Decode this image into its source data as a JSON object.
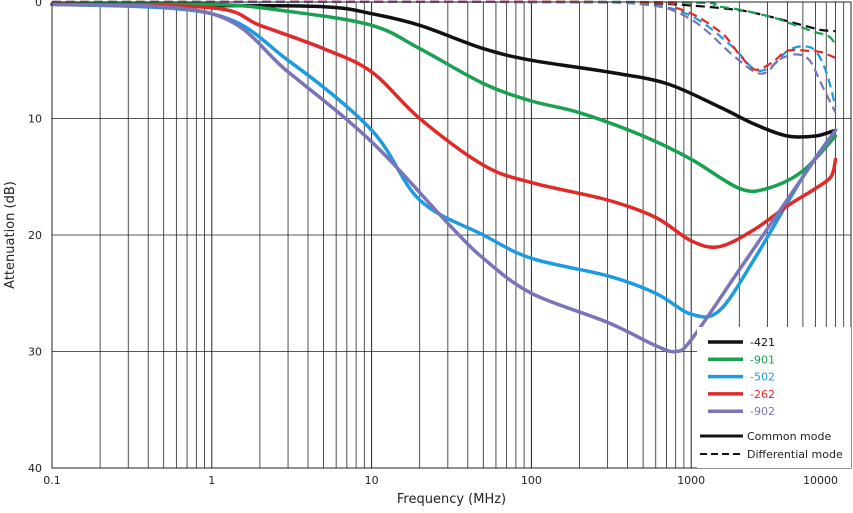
{
  "chart_data": {
    "type": "line",
    "title": "",
    "xlabel": "Frequency (MHz)",
    "ylabel": "Attenuation (dB)",
    "x_scale": "log",
    "xlim": [
      0.1,
      10000
    ],
    "ylim": [
      0,
      40
    ],
    "y_inverted": true,
    "grid": true,
    "legend_position": "bottom-right",
    "x_tick_labels": [
      {
        "value": 0.1,
        "label": "0.1"
      },
      {
        "value": 1,
        "label": "1"
      },
      {
        "value": 10,
        "label": "10"
      },
      {
        "value": 100,
        "label": "100"
      },
      {
        "value": 1000,
        "label": "1000"
      },
      {
        "value": 10000,
        "label": "10000"
      }
    ],
    "y_tick_labels": [
      {
        "value": 0,
        "label": "0"
      },
      {
        "value": 10,
        "label": "10"
      },
      {
        "value": 20,
        "label": "20"
      },
      {
        "value": 30,
        "label": "30"
      },
      {
        "value": 40,
        "label": "40"
      }
    ],
    "series": [
      {
        "name": "-421",
        "mode": "common",
        "color": "#111111",
        "points": [
          [
            0.1,
            0.2
          ],
          [
            1,
            0.3
          ],
          [
            5,
            0.4
          ],
          [
            10,
            1
          ],
          [
            20,
            2
          ],
          [
            50,
            4
          ],
          [
            100,
            5
          ],
          [
            300,
            6
          ],
          [
            700,
            7
          ],
          [
            1500,
            9
          ],
          [
            2500,
            10.5
          ],
          [
            4000,
            11.5
          ],
          [
            6000,
            11.5
          ],
          [
            8000,
            11
          ]
        ]
      },
      {
        "name": "-421",
        "mode": "differential",
        "color": "#111111",
        "points": [
          [
            0.1,
            0
          ],
          [
            100,
            0
          ],
          [
            500,
            0.1
          ],
          [
            1000,
            0.3
          ],
          [
            2000,
            0.7
          ],
          [
            3000,
            1.2
          ],
          [
            5000,
            2
          ],
          [
            6500,
            2.4
          ],
          [
            8000,
            2.5
          ]
        ]
      },
      {
        "name": "-901",
        "mode": "common",
        "color": "#1aa050",
        "points": [
          [
            0.1,
            0.2
          ],
          [
            1,
            0.2
          ],
          [
            3,
            0.8
          ],
          [
            10,
            2
          ],
          [
            20,
            4
          ],
          [
            50,
            7
          ],
          [
            100,
            8.5
          ],
          [
            200,
            9.5
          ],
          [
            500,
            11.5
          ],
          [
            1000,
            13.5
          ],
          [
            2000,
            16
          ],
          [
            3000,
            16
          ],
          [
            5000,
            14.5
          ],
          [
            8000,
            11.5
          ]
        ]
      },
      {
        "name": "-901",
        "mode": "differential",
        "color": "#1aa050",
        "points": [
          [
            0.1,
            0
          ],
          [
            500,
            0
          ],
          [
            1500,
            0.4
          ],
          [
            3000,
            1.2
          ],
          [
            4500,
            2
          ],
          [
            6000,
            2.6
          ],
          [
            7200,
            2.9
          ],
          [
            8000,
            3.6
          ]
        ]
      },
      {
        "name": "-502",
        "mode": "common",
        "color": "#1c9be0",
        "points": [
          [
            0.1,
            0.2
          ],
          [
            1,
            1
          ],
          [
            3,
            5
          ],
          [
            10,
            11
          ],
          [
            20,
            17
          ],
          [
            50,
            20
          ],
          [
            100,
            22
          ],
          [
            300,
            23.5
          ],
          [
            600,
            25
          ],
          [
            1000,
            26.8
          ],
          [
            1500,
            26.5
          ],
          [
            2500,
            22
          ],
          [
            5000,
            15
          ],
          [
            8000,
            11
          ]
        ]
      },
      {
        "name": "-502",
        "mode": "differential",
        "color": "#1c9be0",
        "points": [
          [
            0.1,
            0
          ],
          [
            100,
            0
          ],
          [
            500,
            0.2
          ],
          [
            1000,
            1.2
          ],
          [
            1800,
            3.8
          ],
          [
            2500,
            5.8
          ],
          [
            3200,
            5.5
          ],
          [
            4000,
            4.2
          ],
          [
            5000,
            3.8
          ],
          [
            6000,
            4.2
          ],
          [
            7000,
            6
          ],
          [
            8000,
            9
          ]
        ]
      },
      {
        "name": "-262",
        "mode": "common",
        "color": "#e02a2a",
        "points": [
          [
            0.1,
            0.2
          ],
          [
            1,
            0.5
          ],
          [
            2,
            2
          ],
          [
            5,
            4
          ],
          [
            10,
            6
          ],
          [
            20,
            10
          ],
          [
            50,
            14
          ],
          [
            100,
            15.5
          ],
          [
            300,
            17
          ],
          [
            600,
            18.5
          ],
          [
            1000,
            20.5
          ],
          [
            1500,
            21
          ],
          [
            2500,
            19.5
          ],
          [
            4000,
            17.5
          ],
          [
            6000,
            16
          ],
          [
            7500,
            15
          ],
          [
            8000,
            13.5
          ]
        ]
      },
      {
        "name": "-262",
        "mode": "differential",
        "color": "#e02a2a",
        "points": [
          [
            0.1,
            0
          ],
          [
            300,
            0
          ],
          [
            800,
            0.5
          ],
          [
            1500,
            2.5
          ],
          [
            2000,
            4.5
          ],
          [
            2500,
            5.8
          ],
          [
            3200,
            5.2
          ],
          [
            4000,
            4.2
          ],
          [
            5500,
            4.2
          ],
          [
            6500,
            4.3
          ],
          [
            8000,
            4.8
          ]
        ]
      },
      {
        "name": "-902",
        "mode": "common",
        "color": "#7a74b8",
        "points": [
          [
            0.1,
            0.2
          ],
          [
            1,
            1
          ],
          [
            3,
            6
          ],
          [
            10,
            12
          ],
          [
            30,
            19
          ],
          [
            50,
            22
          ],
          [
            100,
            25
          ],
          [
            300,
            27.5
          ],
          [
            600,
            29.5
          ],
          [
            800,
            30
          ],
          [
            1000,
            29
          ],
          [
            2000,
            23
          ],
          [
            5000,
            15
          ],
          [
            8000,
            11
          ]
        ]
      },
      {
        "name": "-902",
        "mode": "differential",
        "color": "#7a74b8",
        "points": [
          [
            0.1,
            0
          ],
          [
            100,
            0
          ],
          [
            500,
            0.2
          ],
          [
            1000,
            1.5
          ],
          [
            1800,
            4.5
          ],
          [
            2500,
            6
          ],
          [
            3000,
            6
          ],
          [
            3500,
            5
          ],
          [
            4500,
            4.5
          ],
          [
            5500,
            5
          ],
          [
            6500,
            7
          ],
          [
            8000,
            9.5
          ]
        ]
      }
    ],
    "legend": {
      "series": [
        {
          "label": "-421",
          "color": "#111111",
          "text_color": "#111111"
        },
        {
          "label": "-901",
          "color": "#1aa050",
          "text_color": "#1aa050"
        },
        {
          "label": "-502",
          "color": "#1c9be0",
          "text_color": "#1c9be0"
        },
        {
          "label": "-262",
          "color": "#e02a2a",
          "text_color": "#e02a2a"
        },
        {
          "label": "-902",
          "color": "#7a74b8",
          "text_color": "#7a74b8"
        }
      ],
      "modes": [
        {
          "label": "Common mode",
          "style": "solid"
        },
        {
          "label": "Differential mode",
          "style": "dashed"
        }
      ]
    }
  }
}
